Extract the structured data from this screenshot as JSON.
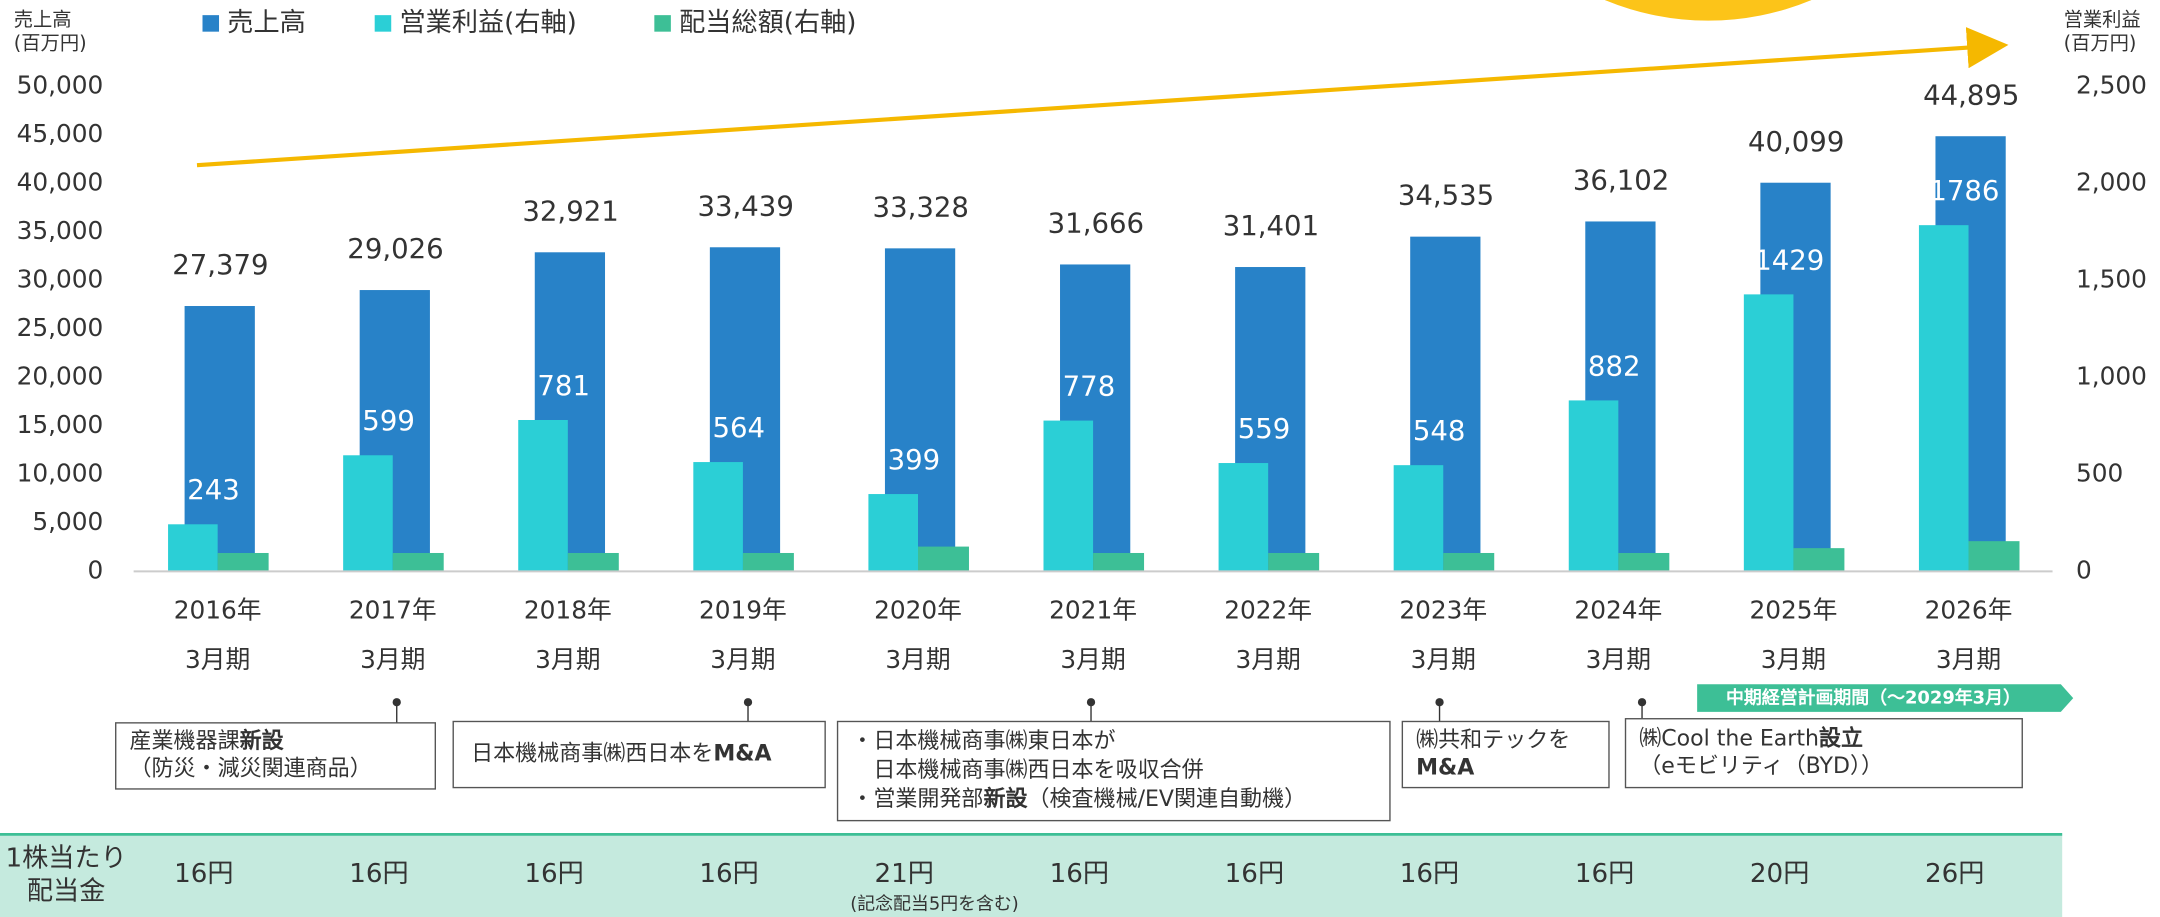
{
  "chart_data": {
    "type": "bar",
    "y_label": [
      "売上高",
      "(百万円)"
    ],
    "y2_label": [
      "営業利益",
      "(百万円)"
    ],
    "categories": [
      [
        "2016年",
        "3月期"
      ],
      [
        "2017年",
        "3月期"
      ],
      [
        "2018年",
        "3月期"
      ],
      [
        "2019年",
        "3月期"
      ],
      [
        "2020年",
        "3月期"
      ],
      [
        "2021年",
        "3月期"
      ],
      [
        "2022年",
        "3月期"
      ],
      [
        "2023年",
        "3月期"
      ],
      [
        "2024年",
        "3月期"
      ],
      [
        "2025年",
        "3月期"
      ],
      [
        "2026年",
        "3月期"
      ]
    ],
    "series": [
      {
        "name": "売上高",
        "color": "#2882c8",
        "values": [
          27379,
          29026,
          32921,
          33439,
          33328,
          31666,
          31401,
          34535,
          36102,
          40099,
          44895
        ],
        "value_labels": [
          "27,379",
          "29,026",
          "32,921",
          "33,439",
          "33,328",
          "31,666",
          "31,401",
          "34,535",
          "36,102",
          "40,099",
          "44,895"
        ]
      },
      {
        "name": "営業利益(右軸)",
        "color": "#2bcfd6",
        "axis": "y2",
        "values": [
          243,
          599,
          781,
          564,
          399,
          778,
          559,
          548,
          882,
          1429,
          1786
        ]
      },
      {
        "name": "配当総額(右軸)",
        "color": "#3dbf96",
        "axis": "y2",
        "values": [
          95,
          95,
          95,
          95,
          128,
          95,
          95,
          95,
          95,
          120,
          156
        ]
      }
    ],
    "ylim": [
      0,
      50000
    ],
    "yticks": [
      0,
      {
        "value": 5000,
        "label": "5,000"
      },
      {
        "value": 10000,
        "label": "10,000"
      },
      {
        "value": 15000,
        "label": "15,000"
      },
      {
        "value": 20000,
        "label": "20,000"
      },
      {
        "value": 25000,
        "label": "25,000"
      },
      {
        "value": 30000,
        "label": "30,000"
      },
      {
        "value": 35000,
        "label": "35,000"
      },
      {
        "value": 40000,
        "label": "40,000"
      },
      {
        "value": 45000,
        "label": "45,000"
      },
      {
        "value": 50000,
        "label": "50,000"
      }
    ],
    "y2lim": [
      0,
      2500
    ],
    "y2ticks": [
      0,
      500,
      {
        "value": 1000,
        "label": "1,000"
      },
      {
        "value": 1500,
        "label": "1,500"
      },
      {
        "value": 2000,
        "label": "2,000"
      },
      {
        "value": 2500,
        "label": "2,500"
      }
    ],
    "plan_label": "中期経営計画期間（～2029年3月）",
    "annotations": [
      {
        "lines": [
          [
            {
              "text": "産業機器課",
              "bold": false
            },
            {
              "text": "新設",
              "bold": true
            }
          ],
          [
            {
              "text": "（防災・減災関連商品）",
              "bold": false
            }
          ]
        ]
      },
      {
        "lines": [
          [
            {
              "text": "日本機械商事㈱西日本を",
              "bold": false
            },
            {
              "text": "M&A",
              "bold": true
            }
          ]
        ]
      },
      {
        "lines": [
          [
            {
              "text": "・日本機械商事㈱東日本が",
              "bold": false
            }
          ],
          [
            {
              "text": "　日本機械商事㈱西日本を吸収合併",
              "bold": false
            }
          ],
          [
            {
              "text": "・営業開発部",
              "bold": false
            },
            {
              "text": "新設",
              "bold": true
            },
            {
              "text": "（検査機械/EV関連自動機）",
              "bold": false
            }
          ]
        ]
      },
      {
        "lines": [
          [
            {
              "text": "㈱共和テックを",
              "bold": false
            }
          ],
          [
            {
              "text": "M&A",
              "bold": true
            }
          ]
        ]
      },
      {
        "lines": [
          [
            {
              "text": "㈱Cool the Earth",
              "bold": false
            },
            {
              "text": "設立",
              "bold": true
            }
          ],
          [
            {
              "text": "（eモビリティ（BYD））",
              "bold": false
            }
          ]
        ]
      }
    ],
    "dividend_per_share": {
      "label": [
        "1株当たり",
        "配当金"
      ],
      "values": [
        16,
        16,
        16,
        16,
        21,
        16,
        16,
        16,
        16,
        20,
        26
      ],
      "value_labels": [
        "16円",
        "16円",
        "16円",
        "16円",
        "21円",
        "16円",
        "16円",
        "16円",
        "16円",
        "20円",
        "26円"
      ],
      "note": "(記念配当5円を含む)"
    }
  }
}
